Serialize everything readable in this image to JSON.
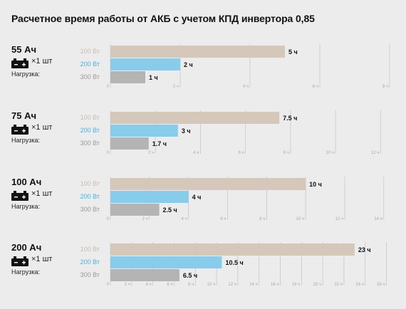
{
  "title": "Расчетное время работы от АКБ с учетом КПД инвертора 0,85",
  "colors": {
    "w100": "#d6c7bb",
    "w200": "#88ccec",
    "w300": "#b4b4b4",
    "w100_label": "#c7bdb4",
    "w200_label": "#4cb0e2",
    "w300_label": "#9a9a9a",
    "grid": "#c8c8c8"
  },
  "chart_data": [
    {
      "type": "bar",
      "capacity": "55 Ач",
      "quantity": "×1 шт",
      "load_label": "Нагрузка:",
      "categories": [
        "100 Вт",
        "200 Вт",
        "300 Вт"
      ],
      "values": [
        5,
        2,
        1
      ],
      "value_labels": [
        "5 ч",
        "2 ч",
        "1 ч"
      ],
      "xlim": [
        0,
        8
      ],
      "ticks": [
        0,
        2,
        4,
        6,
        8
      ],
      "tick_labels": [
        "0",
        "2 ч",
        "4 ч",
        "6 ч",
        "8 ч"
      ]
    },
    {
      "type": "bar",
      "capacity": "75 Ач",
      "quantity": "×1 шт",
      "load_label": "Нагрузка:",
      "categories": [
        "100 Вт",
        "200 Вт",
        "300 Вт"
      ],
      "values": [
        7.5,
        3,
        1.7
      ],
      "value_labels": [
        "7.5 ч",
        "3 ч",
        "1.7 ч"
      ],
      "xlim": [
        0,
        12.4
      ],
      "ticks": [
        0,
        2,
        4,
        6,
        8,
        10,
        12
      ],
      "tick_labels": [
        "0",
        "2 ч",
        "4 ч",
        "6 ч",
        "8 ч",
        "10 ч",
        "12 ч"
      ]
    },
    {
      "type": "bar",
      "capacity": "100 Ач",
      "quantity": "×1 шт",
      "load_label": "Нагрузка:",
      "categories": [
        "100 Вт",
        "200 Вт",
        "300 Вт"
      ],
      "values": [
        10,
        4,
        2.5
      ],
      "value_labels": [
        "10 ч",
        "4 ч",
        "2.5 ч"
      ],
      "xlim": [
        0,
        14.3
      ],
      "ticks": [
        0,
        2,
        4,
        6,
        8,
        10,
        12,
        14
      ],
      "tick_labels": [
        "0",
        "2 ч",
        "4 ч",
        "6 ч",
        "8 ч",
        "10 ч",
        "12 ч",
        "14 ч"
      ]
    },
    {
      "type": "bar",
      "capacity": "200 Ач",
      "quantity": "×1 шт",
      "load_label": "Нагрузка:",
      "categories": [
        "100 Вт",
        "200 Вт",
        "300 Вт"
      ],
      "values": [
        23,
        10.5,
        6.5
      ],
      "value_labels": [
        "23 ч",
        "10.5 ч",
        "6.5 ч"
      ],
      "xlim": [
        0,
        26.3
      ],
      "ticks": [
        0,
        2,
        4,
        6,
        8,
        10,
        12,
        14,
        16,
        18,
        20,
        22,
        24,
        26
      ],
      "tick_labels": [
        "0",
        "2 ч",
        "4 ч",
        "6 ч",
        "8 ч",
        "10 ч",
        "12 ч",
        "14 ч",
        "16 ч",
        "18 ч",
        "20 ч",
        "22 ч",
        "24 ч",
        "26 ч"
      ]
    }
  ]
}
